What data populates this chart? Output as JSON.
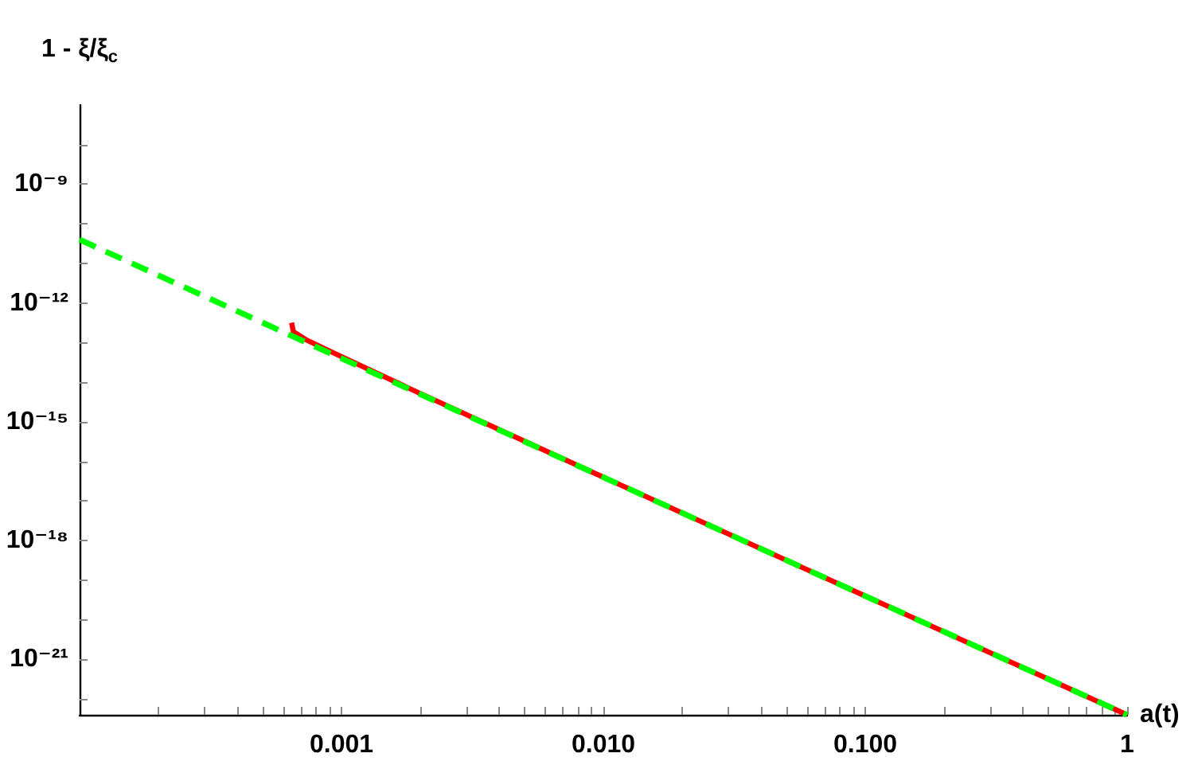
{
  "chart_data": {
    "type": "line",
    "log": "xy",
    "xlabel": "a(t)",
    "ylabel": "1 - ξ/ξ$_{c}$",
    "xlim": [
      0.0001,
      1
    ],
    "ylim": [
      4e-23,
      1e-07
    ],
    "xticks": [
      {
        "value": 0.0002,
        "label": null
      },
      {
        "value": 0.0003,
        "label": null
      },
      {
        "value": 0.0004,
        "label": null
      },
      {
        "value": 0.0005,
        "label": null
      },
      {
        "value": 0.0006,
        "label": null
      },
      {
        "value": 0.0007,
        "label": null
      },
      {
        "value": 0.0008,
        "label": null
      },
      {
        "value": 0.0009,
        "label": null
      },
      0.001,
      {
        "value": 0.002,
        "label": null
      },
      {
        "value": 0.003,
        "label": null
      },
      {
        "value": 0.004,
        "label": null
      },
      {
        "value": 0.005,
        "label": null
      },
      {
        "value": 0.006,
        "label": null
      },
      {
        "value": 0.007,
        "label": null
      },
      {
        "value": 0.008,
        "label": null
      },
      {
        "value": 0.009,
        "label": null
      },
      {
        "value": 0.01,
        "label": "0.010"
      },
      {
        "value": 0.02,
        "label": null
      },
      {
        "value": 0.03,
        "label": null
      },
      {
        "value": 0.04,
        "label": null
      },
      {
        "value": 0.05,
        "label": null
      },
      {
        "value": 0.06,
        "label": null
      },
      {
        "value": 0.07,
        "label": null
      },
      {
        "value": 0.08,
        "label": null
      },
      {
        "value": 0.09,
        "label": null
      },
      {
        "value": 0.1,
        "label": "0.100"
      },
      {
        "value": 0.2,
        "label": null
      },
      {
        "value": 0.3,
        "label": null
      },
      {
        "value": 0.4,
        "label": null
      },
      {
        "value": 0.5,
        "label": null
      },
      {
        "value": 0.6,
        "label": null
      },
      {
        "value": 0.7,
        "label": null
      },
      {
        "value": 0.8,
        "label": null
      },
      {
        "value": 0.9,
        "label": null
      },
      1
    ],
    "yticks": [
      {
        "value": 1e-22,
        "label": null
      },
      {
        "value": 1e-21,
        "label": "10⁻²¹"
      },
      {
        "value": 1e-20,
        "label": null
      },
      {
        "value": 1e-19,
        "label": null
      },
      {
        "value": 1e-18,
        "label": "10⁻¹⁸"
      },
      {
        "value": 1e-17,
        "label": null
      },
      {
        "value": 1e-16,
        "label": null
      },
      {
        "value": 1e-15,
        "label": "10⁻¹⁵"
      },
      {
        "value": 1e-14,
        "label": null
      },
      {
        "value": 1e-13,
        "label": null
      },
      {
        "value": 1e-12,
        "label": "10⁻¹²"
      },
      {
        "value": 1e-11,
        "label": null
      },
      {
        "value": 1e-10,
        "label": null
      },
      {
        "value": 1e-09,
        "label": "10⁻⁹"
      },
      {
        "value": 1e-08,
        "label": null
      }
    ],
    "series": [
      {
        "color": "#ff0000",
        "line_style": "solid",
        "x": [
          0.000645,
          0.000655,
          0.00073,
          0.00094,
          0.002,
          0.01,
          0.1,
          1
        ],
        "values": [
          3.2e-13,
          1.9e-13,
          1.2e-13,
          5.4e-14,
          5.2e-15,
          4e-17,
          4e-20,
          4e-23
        ]
      },
      {
        "color": "#00ff00",
        "line_style": "dashed",
        "x": [
          0.0001,
          0.001,
          0.01,
          0.1,
          1
        ],
        "values": [
          4e-11,
          4e-14,
          4e-17,
          4e-20,
          4e-23
        ]
      }
    ]
  }
}
